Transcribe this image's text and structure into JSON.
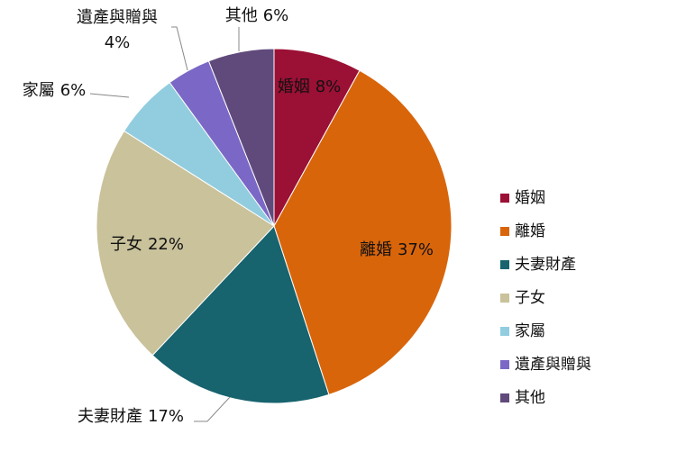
{
  "chart_data": {
    "type": "pie",
    "categories": [
      "婚姻",
      "離婚",
      "夫妻財產",
      "子女",
      "家屬",
      "遺產與贈與",
      "其他"
    ],
    "values": [
      8,
      37,
      17,
      22,
      6,
      4,
      6
    ],
    "value_labels": [
      "8%",
      "37%",
      "17%",
      "22%",
      "6%",
      "4%",
      "6%"
    ],
    "colors": [
      "#9b1035",
      "#d9650b",
      "#17636e",
      "#c9c29b",
      "#92cddf",
      "#7b68c6",
      "#604a7b"
    ],
    "legend": "right"
  }
}
